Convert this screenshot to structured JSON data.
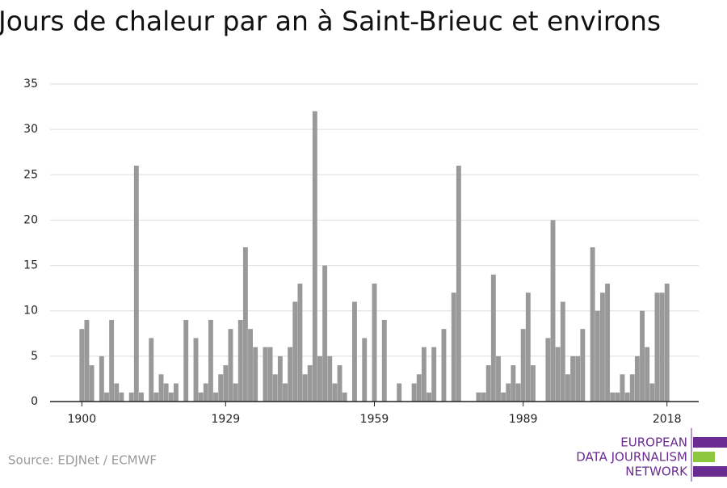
{
  "chart_data": {
    "type": "bar",
    "title": "Jours de chaleur par an à Saint-Brieuc et environs",
    "source": "Source: EDJNet / ECMWF",
    "logo": [
      "EUROPEAN",
      "DATA JOURNALISM",
      "NETWORK"
    ],
    "color": "#999999",
    "x": [
      1900,
      1901,
      1902,
      1903,
      1904,
      1905,
      1906,
      1907,
      1908,
      1909,
      1910,
      1911,
      1912,
      1913,
      1914,
      1915,
      1916,
      1917,
      1918,
      1919,
      1920,
      1921,
      1922,
      1923,
      1924,
      1925,
      1926,
      1927,
      1928,
      1929,
      1930,
      1931,
      1932,
      1933,
      1934,
      1935,
      1936,
      1937,
      1938,
      1939,
      1940,
      1941,
      1942,
      1943,
      1944,
      1945,
      1946,
      1947,
      1948,
      1949,
      1950,
      1951,
      1952,
      1953,
      1954,
      1955,
      1956,
      1957,
      1958,
      1959,
      1960,
      1961,
      1962,
      1963,
      1964,
      1965,
      1966,
      1967,
      1968,
      1969,
      1970,
      1971,
      1972,
      1973,
      1974,
      1975,
      1976,
      1977,
      1978,
      1979,
      1980,
      1981,
      1982,
      1983,
      1984,
      1985,
      1986,
      1987,
      1988,
      1989,
      1990,
      1991,
      1992,
      1993,
      1994,
      1995,
      1996,
      1997,
      1998,
      1999,
      2000,
      2001,
      2002,
      2003,
      2004,
      2005,
      2006,
      2007,
      2008,
      2009,
      2010,
      2011,
      2012,
      2013,
      2014,
      2015,
      2016,
      2017,
      2018
    ],
    "values": [
      8,
      9,
      4,
      0,
      5,
      1,
      9,
      2,
      1,
      0,
      1,
      26,
      1,
      0,
      7,
      1,
      3,
      2,
      1,
      2,
      0,
      9,
      0,
      7,
      1,
      2,
      9,
      1,
      3,
      4,
      8,
      2,
      9,
      17,
      8,
      6,
      0,
      6,
      6,
      3,
      5,
      2,
      6,
      11,
      13,
      3,
      4,
      32,
      5,
      15,
      5,
      2,
      4,
      1,
      0,
      11,
      0,
      7,
      0,
      13,
      0,
      9,
      0,
      0,
      2,
      0,
      0,
      2,
      3,
      6,
      1,
      6,
      0,
      8,
      0,
      12,
      26,
      0,
      0,
      0,
      1,
      1,
      4,
      14,
      5,
      1,
      2,
      4,
      2,
      8,
      12,
      4,
      0,
      0,
      7,
      20,
      6,
      11,
      3,
      5,
      5,
      8,
      0,
      17,
      10,
      12,
      13,
      1,
      1,
      3,
      1,
      3,
      5,
      10,
      6,
      2,
      12,
      12,
      13
    ],
    "xlim": [
      1893.6,
      2024.4
    ],
    "xticks": [
      1900,
      1929,
      1959,
      1989,
      2018
    ],
    "ylim": [
      0,
      35
    ],
    "yticks": [
      0,
      5,
      10,
      15,
      20,
      25,
      30,
      35
    ],
    "grid": true
  }
}
